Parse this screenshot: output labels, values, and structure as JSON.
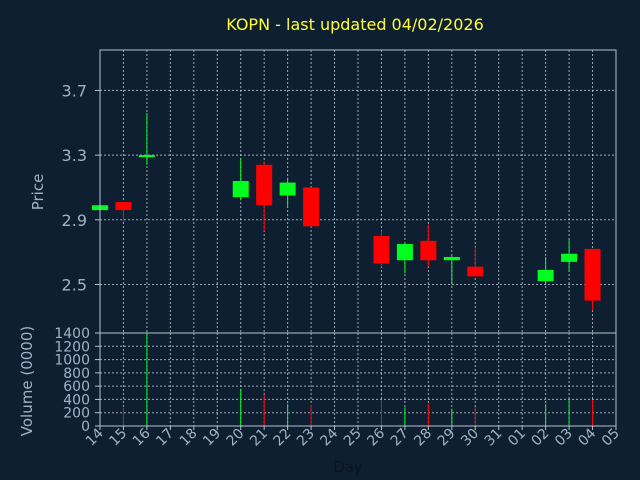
{
  "chart_data": [
    {
      "type": "candlestick",
      "title": "KOPN - last updated 04/02/2026",
      "ylabel": "Price",
      "ylim": [
        2.2,
        3.95
      ],
      "yticks": [
        2.5,
        2.9,
        3.3,
        3.7
      ],
      "colors": {
        "up": "#00ff1e",
        "down": "#ff0000"
      },
      "x_span": [
        14,
        36
      ],
      "categories": [
        "14",
        "15",
        "16",
        "17",
        "18",
        "19",
        "20",
        "21",
        "22",
        "23",
        "24",
        "25",
        "26",
        "27",
        "28",
        "29",
        "30",
        "31",
        "01",
        "02",
        "03",
        "04",
        "05"
      ],
      "candles": [
        {
          "day": "14",
          "open": 2.96,
          "high": 2.99,
          "low": 2.96,
          "close": 2.99
        },
        {
          "day": "15",
          "open": 3.01,
          "high": 3.01,
          "low": 2.89,
          "close": 2.96
        },
        {
          "day": "16",
          "open": 3.29,
          "high": 3.56,
          "low": 3.24,
          "close": 3.3
        },
        {
          "day": "20",
          "open": 3.04,
          "high": 3.28,
          "low": 3.02,
          "close": 3.14
        },
        {
          "day": "21",
          "open": 3.24,
          "high": 3.26,
          "low": 2.83,
          "close": 2.99
        },
        {
          "day": "22",
          "open": 3.05,
          "high": 3.16,
          "low": 2.98,
          "close": 3.13
        },
        {
          "day": "23",
          "open": 3.1,
          "high": 3.1,
          "low": 2.86,
          "close": 2.86
        },
        {
          "day": "26",
          "open": 2.8,
          "high": 2.83,
          "low": 2.61,
          "close": 2.63
        },
        {
          "day": "27",
          "open": 2.65,
          "high": 2.76,
          "low": 2.57,
          "close": 2.75
        },
        {
          "day": "28",
          "open": 2.77,
          "high": 2.87,
          "low": 2.61,
          "close": 2.65
        },
        {
          "day": "29",
          "open": 2.65,
          "high": 2.68,
          "low": 2.5,
          "close": 2.67
        },
        {
          "day": "30",
          "open": 2.61,
          "high": 2.73,
          "low": 2.55,
          "close": 2.55
        },
        {
          "day": "02",
          "open": 2.52,
          "high": 2.67,
          "low": 2.51,
          "close": 2.59
        },
        {
          "day": "03",
          "open": 2.64,
          "high": 2.78,
          "low": 2.58,
          "close": 2.69
        },
        {
          "day": "04",
          "open": 2.72,
          "high": 2.72,
          "low": 2.34,
          "close": 2.4
        }
      ]
    },
    {
      "type": "bar",
      "ylabel": "Volume (0000)",
      "xlabel": "Day",
      "ylim": [
        0,
        1400
      ],
      "yticks": [
        0,
        200,
        400,
        600,
        800,
        1000,
        1200,
        1400
      ],
      "series": [
        {
          "values": [
            {
              "day": "15",
              "value": 270,
              "color": "down"
            },
            {
              "day": "16",
              "value": 1400,
              "color": "up"
            },
            {
              "day": "20",
              "value": 560,
              "color": "up"
            },
            {
              "day": "21",
              "value": 470,
              "color": "down"
            },
            {
              "day": "22",
              "value": 330,
              "color": "up"
            },
            {
              "day": "23",
              "value": 320,
              "color": "down"
            },
            {
              "day": "26",
              "value": 390,
              "color": "down"
            },
            {
              "day": "27",
              "value": 280,
              "color": "up"
            },
            {
              "day": "28",
              "value": 330,
              "color": "down"
            },
            {
              "day": "29",
              "value": 260,
              "color": "up"
            },
            {
              "day": "30",
              "value": 280,
              "color": "down"
            },
            {
              "day": "02",
              "value": 330,
              "color": "up"
            },
            {
              "day": "03",
              "value": 400,
              "color": "up"
            },
            {
              "day": "04",
              "value": 390,
              "color": "down"
            }
          ]
        }
      ]
    }
  ]
}
